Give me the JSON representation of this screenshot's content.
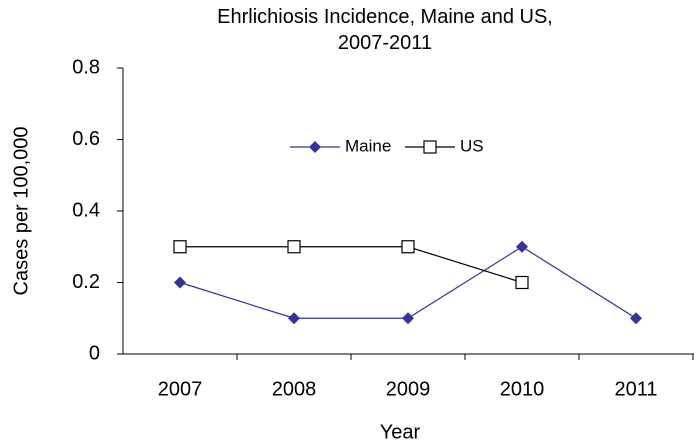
{
  "chart_data": {
    "type": "line",
    "title": "Ehrlichiosis Incidence, Maine and US, 2007-2011",
    "x_label": "Year",
    "y_label": "Cases per 100,000",
    "categories": [
      "2007",
      "2008",
      "2009",
      "2010",
      "2011"
    ],
    "series": [
      {
        "name": "Maine",
        "color": "#333399",
        "marker": "diamond",
        "values": [
          0.2,
          0.1,
          0.1,
          0.3,
          0.1
        ]
      },
      {
        "name": "US",
        "color": "#000000",
        "marker": "square",
        "values": [
          0.3,
          0.3,
          0.3,
          0.2,
          null
        ]
      }
    ],
    "ylim": [
      0,
      0.8
    ],
    "yticks": [
      0,
      0.2,
      0.4,
      0.6,
      0.8
    ],
    "grid": false,
    "legend": "top"
  }
}
